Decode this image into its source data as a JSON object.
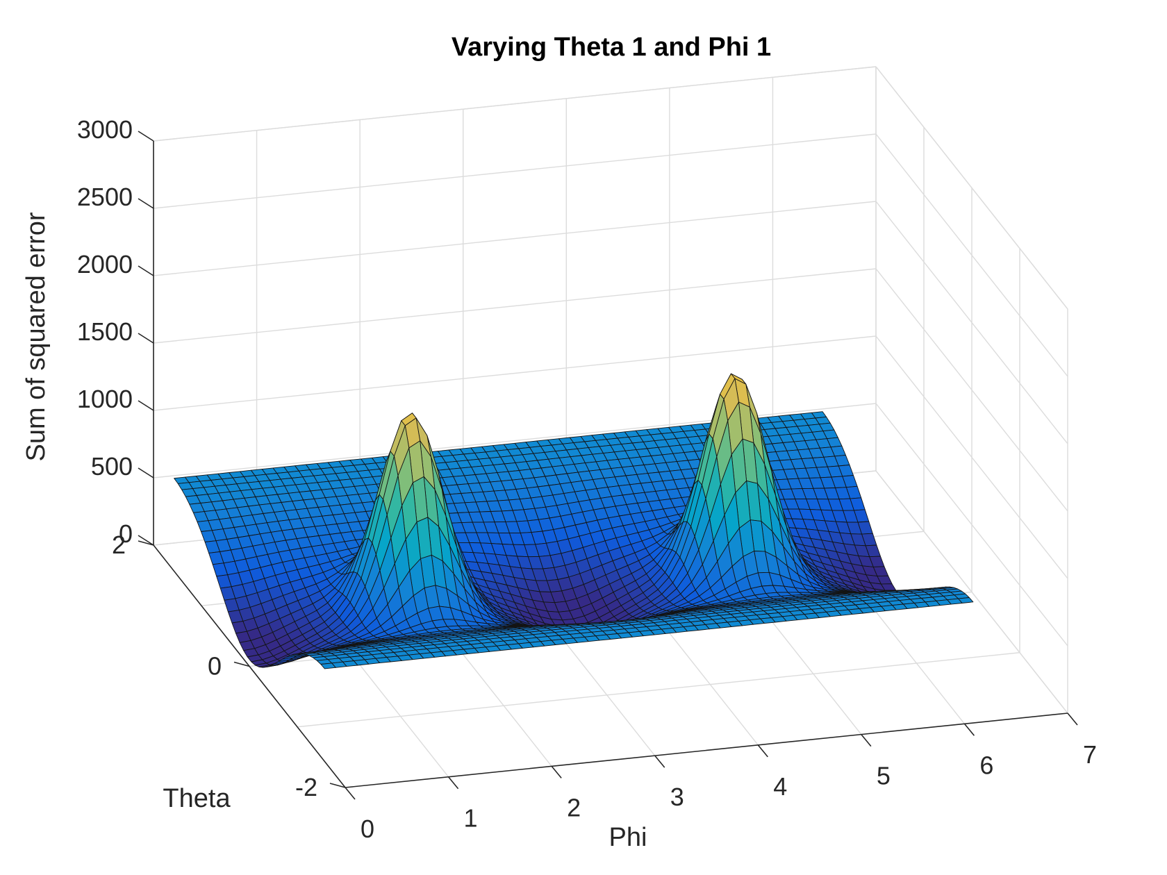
{
  "chart_data": {
    "type": "surface",
    "title": "Varying Theta 1 and Phi 1",
    "xlabel": "Phi",
    "ylabel": "Theta",
    "zlabel": "Sum of squared error",
    "xlim": [
      0,
      7
    ],
    "ylim": [
      -2,
      2
    ],
    "zlim": [
      0,
      3000
    ],
    "xticks": [
      "0",
      "1",
      "2",
      "3",
      "4",
      "5",
      "6",
      "7"
    ],
    "yticks": [
      "-2",
      "0",
      "2"
    ],
    "zticks": [
      "0",
      "500",
      "1000",
      "1500",
      "2000",
      "2500",
      "3000"
    ],
    "colormap": "parula",
    "colormap_colors": [
      "#352a87",
      "#0f5cdd",
      "#1481d6",
      "#06a4ca",
      "#2eb7a4",
      "#87bf77",
      "#d1bb59",
      "#fec832",
      "#f9fb0e"
    ],
    "grid": true,
    "x_range": [
      0,
      6.283
    ],
    "y_range": [
      -1.571,
      1.571
    ],
    "grid_points": [
      60,
      40
    ],
    "surface_model": {
      "base_level": 690,
      "theta_well_depth": 420,
      "peaks": [
        {
          "phi": 1.571,
          "theta": 0.0,
          "height": 1490
        },
        {
          "phi": 4.712,
          "theta": 0.0,
          "height": 1540
        }
      ],
      "troughs": [
        {
          "phi": 0.0,
          "theta": 0.0,
          "depth": 220
        },
        {
          "phi": 3.142,
          "theta": 0.0,
          "depth": 240
        },
        {
          "phi": 6.283,
          "theta": 0.0,
          "depth": 220
        }
      ],
      "z_min": 120,
      "z_max": 2130
    }
  }
}
